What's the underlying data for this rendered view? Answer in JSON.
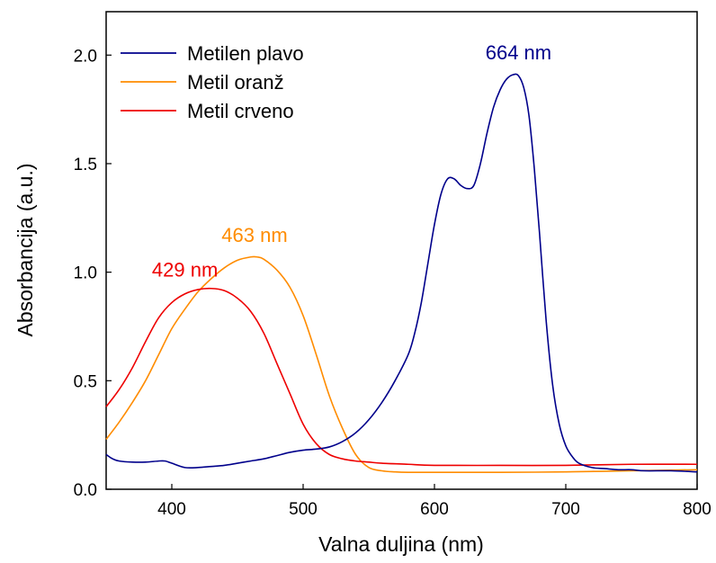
{
  "chart_data": {
    "type": "line",
    "xlabel": "Valna duljina (nm)",
    "ylabel": "Absorbancija (a.u.)",
    "xlim": [
      350,
      800
    ],
    "ylim": [
      0.0,
      2.2
    ],
    "xticks": [
      400,
      500,
      600,
      700,
      800
    ],
    "xtick_labels": [
      "400",
      "500",
      "600",
      "700",
      "800"
    ],
    "yticks": [
      0.0,
      0.5,
      1.0,
      1.5,
      2.0
    ],
    "ytick_labels": [
      "0.0",
      "0.5",
      "1.0",
      "1.5",
      "2.0"
    ],
    "grid": false,
    "legend_position": "top-left",
    "series": [
      {
        "name": "Metilen plavo",
        "color": "#00008b",
        "x": [
          350,
          355,
          360,
          370,
          380,
          390,
          395,
          400,
          410,
          420,
          430,
          440,
          450,
          460,
          470,
          480,
          490,
          500,
          510,
          520,
          530,
          540,
          550,
          560,
          570,
          580,
          585,
          590,
          595,
          600,
          605,
          610,
          615,
          620,
          625,
          630,
          635,
          640,
          645,
          650,
          655,
          660,
          664,
          668,
          672,
          676,
          680,
          685,
          690,
          695,
          700,
          705,
          710,
          720,
          730,
          740,
          750,
          760,
          780,
          800
        ],
        "y": [
          0.16,
          0.14,
          0.13,
          0.125,
          0.125,
          0.13,
          0.13,
          0.12,
          0.1,
          0.1,
          0.105,
          0.11,
          0.12,
          0.13,
          0.14,
          0.155,
          0.17,
          0.18,
          0.185,
          0.195,
          0.22,
          0.26,
          0.32,
          0.4,
          0.5,
          0.62,
          0.72,
          0.86,
          1.04,
          1.22,
          1.36,
          1.43,
          1.43,
          1.4,
          1.385,
          1.4,
          1.5,
          1.64,
          1.76,
          1.84,
          1.89,
          1.91,
          1.905,
          1.85,
          1.72,
          1.48,
          1.18,
          0.78,
          0.48,
          0.3,
          0.2,
          0.15,
          0.12,
          0.1,
          0.095,
          0.09,
          0.09,
          0.085,
          0.085,
          0.08
        ]
      },
      {
        "name": "Metil oranž",
        "color": "#ff8c00",
        "x": [
          350,
          360,
          370,
          380,
          390,
          400,
          410,
          420,
          430,
          440,
          450,
          460,
          465,
          470,
          480,
          490,
          500,
          510,
          520,
          530,
          540,
          550,
          560,
          570,
          580,
          600,
          650,
          700,
          750,
          800
        ],
        "y": [
          0.23,
          0.31,
          0.4,
          0.5,
          0.62,
          0.74,
          0.83,
          0.91,
          0.97,
          1.02,
          1.055,
          1.07,
          1.07,
          1.06,
          1.01,
          0.93,
          0.8,
          0.62,
          0.43,
          0.28,
          0.16,
          0.1,
          0.085,
          0.08,
          0.078,
          0.078,
          0.078,
          0.08,
          0.085,
          0.09
        ]
      },
      {
        "name": "Metil crveno",
        "color": "#ee0000",
        "x": [
          350,
          360,
          370,
          380,
          390,
          400,
          410,
          420,
          430,
          440,
          450,
          460,
          470,
          480,
          490,
          500,
          510,
          520,
          530,
          540,
          550,
          560,
          580,
          600,
          650,
          700,
          750,
          800
        ],
        "y": [
          0.38,
          0.46,
          0.56,
          0.68,
          0.79,
          0.86,
          0.9,
          0.92,
          0.925,
          0.915,
          0.88,
          0.82,
          0.72,
          0.58,
          0.44,
          0.3,
          0.21,
          0.16,
          0.14,
          0.13,
          0.125,
          0.12,
          0.115,
          0.11,
          0.11,
          0.11,
          0.115,
          0.115
        ]
      }
    ],
    "annotations": [
      {
        "text": "664 nm",
        "x": 664,
        "y": 1.98,
        "color": "#00008b"
      },
      {
        "text": "463 nm",
        "x": 463,
        "y": 1.14,
        "color": "#ff8c00"
      },
      {
        "text": "429 nm",
        "x": 410,
        "y": 0.98,
        "color": "#ee0000"
      }
    ]
  }
}
